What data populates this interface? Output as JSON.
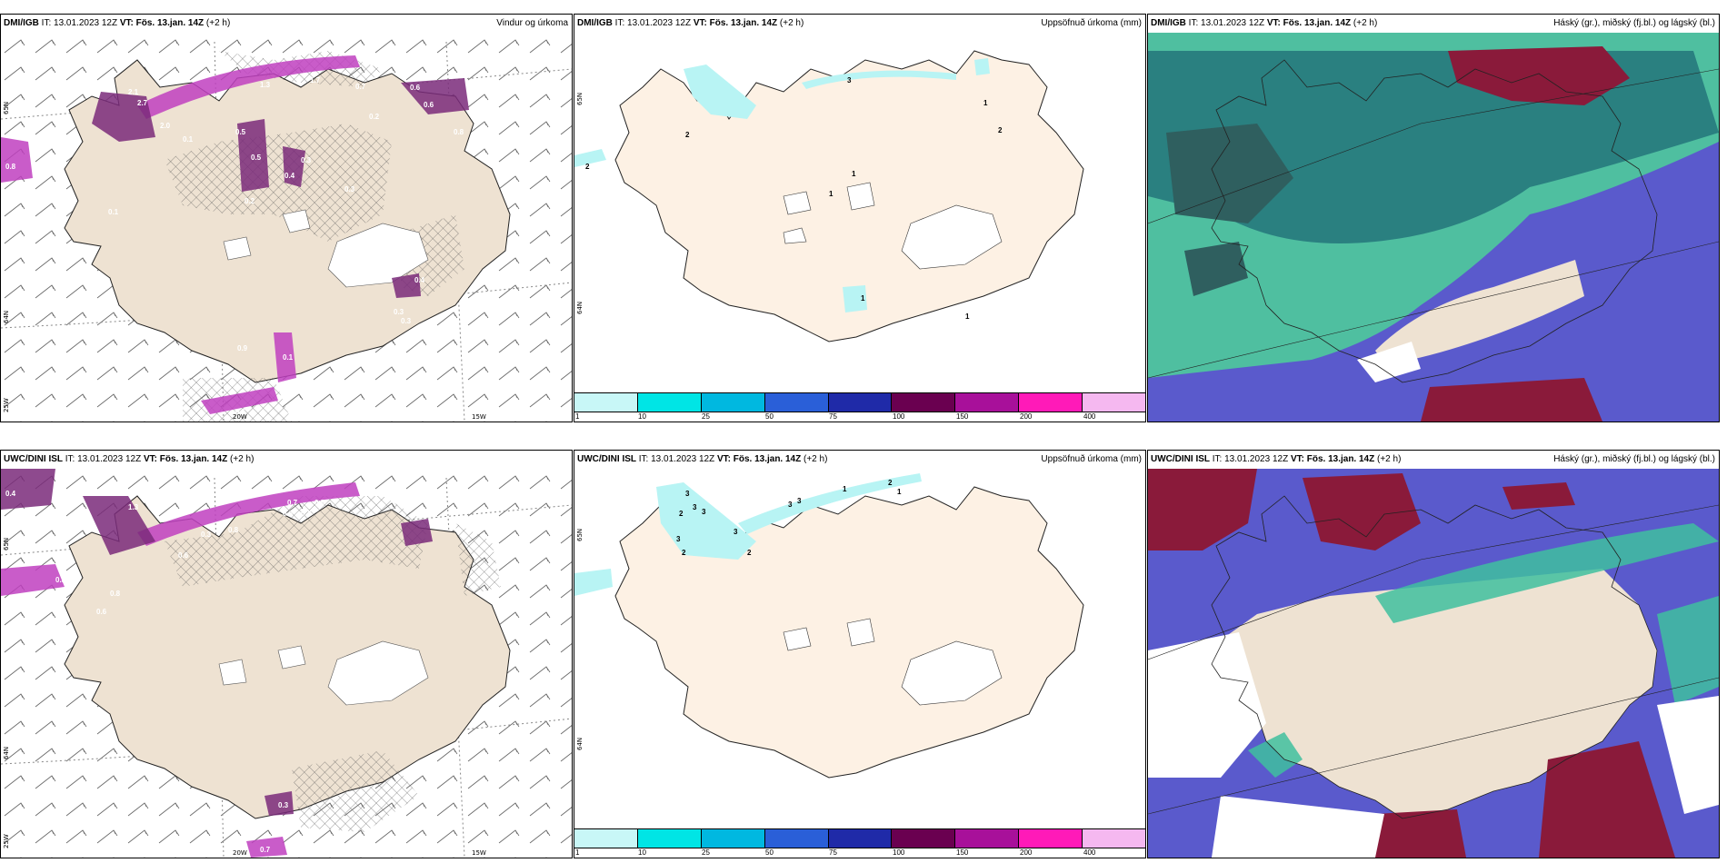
{
  "panels": [
    {
      "model": "DMI/IGB",
      "it_label": "IT:",
      "it_value": "13.01.2023 12Z",
      "vt_label": "VT:",
      "vt_value": "Fös. 13.jan. 14Z",
      "offset": "(+2 h)",
      "title": "Vindur og úrkoma",
      "values": [
        "0.8",
        "2.1",
        "2.7",
        "2.0",
        "1.3",
        "1.7",
        "0.7",
        "0.6",
        "0.6",
        "0.3",
        "0.5",
        "0.5",
        "0.8",
        "0.2",
        "0.4",
        "0.1",
        "0.1",
        "0.3",
        "0.3",
        "0.1",
        "0.9",
        "0.2",
        "0.4",
        "0.1",
        "0.3"
      ],
      "grid_labels": [
        "65N",
        "64N",
        "25W",
        "20W",
        "15W"
      ]
    },
    {
      "model": "DMI/IGB",
      "it_label": "IT:",
      "it_value": "13.01.2023 12Z",
      "vt_label": "VT:",
      "vt_value": "Fös. 13.jan. 14Z",
      "offset": "(+2 h)",
      "title": "Uppsöfnuð úrkoma (mm)",
      "values": [
        "3",
        "2",
        "2",
        "1",
        "1",
        "2",
        "1",
        "1",
        "1"
      ],
      "grid_labels": [
        "65N",
        "64N"
      ],
      "colorbar": [
        "1",
        "10",
        "25",
        "50",
        "75",
        "100",
        "150",
        "200",
        "400"
      ]
    },
    {
      "model": "DMI/IGB",
      "it_label": "IT:",
      "it_value": "13.01.2023 12Z",
      "vt_label": "VT:",
      "vt_value": "Fös. 13.jan. 14Z",
      "offset": "(+2 h)",
      "title": "Háský (gr.), miðský (fj.bl.) og lágský (bl.)"
    },
    {
      "model": "UWC/DINI ISL",
      "it_label": "IT:",
      "it_value": "13.01.2023 12Z",
      "vt_label": "VT:",
      "vt_value": "Fös. 13.jan. 14Z",
      "offset": "(+2 h)",
      "title": "",
      "values": [
        "0.4",
        "0.8",
        "0.7",
        "0.7",
        "0.8",
        "0.3",
        "0.8",
        "1.3",
        "0.8",
        "0.8",
        "0.6",
        "0.6",
        "0.3",
        "0.7"
      ],
      "grid_labels": [
        "65N",
        "64N",
        "25W",
        "20W",
        "15W"
      ]
    },
    {
      "model": "UWC/DINI ISL",
      "it_label": "IT:",
      "it_value": "13.01.2023 12Z",
      "vt_label": "VT:",
      "vt_value": "Fös. 13.jan. 14Z",
      "offset": "(+2 h)",
      "title": "Uppsöfnuð úrkoma (mm)",
      "values": [
        "1",
        "2",
        "1",
        "3",
        "3",
        "3",
        "3",
        "3",
        "2",
        "3",
        "2",
        "3",
        "2"
      ],
      "grid_labels": [
        "65N",
        "64N"
      ],
      "colorbar": [
        "1",
        "10",
        "25",
        "50",
        "75",
        "100",
        "150",
        "200",
        "400"
      ]
    },
    {
      "model": "UWC/DINI ISL",
      "it_label": "IT:",
      "it_value": "13.01.2023 12Z",
      "vt_label": "VT:",
      "vt_value": "Fös. 13.jan. 14Z",
      "offset": "(+2 h)",
      "title": "Háský (gr.), miðský (fj.bl.) og lágský (bl.)"
    }
  ],
  "colors": {
    "land": "#eee2d2",
    "land_light": "#fdf1e4",
    "ice": "#ffffff",
    "precip_magenta": "#c040c0",
    "precip_dark": "#7a2a7a",
    "precip_cyan": "#b8f4f4",
    "cloud_high": "#3fbf9f",
    "cloud_mid": "#2a7f7f",
    "cloud_low": "#5555cc",
    "cloud_dark_red": "#8a1a3a"
  },
  "colorbar_colors": [
    "#c8f7f7",
    "#00e5e5",
    "#00b8e0",
    "#2a5fd8",
    "#1f2aa8",
    "#6a0050",
    "#a8109a",
    "#ff1ab8",
    "#f5b8f0"
  ]
}
